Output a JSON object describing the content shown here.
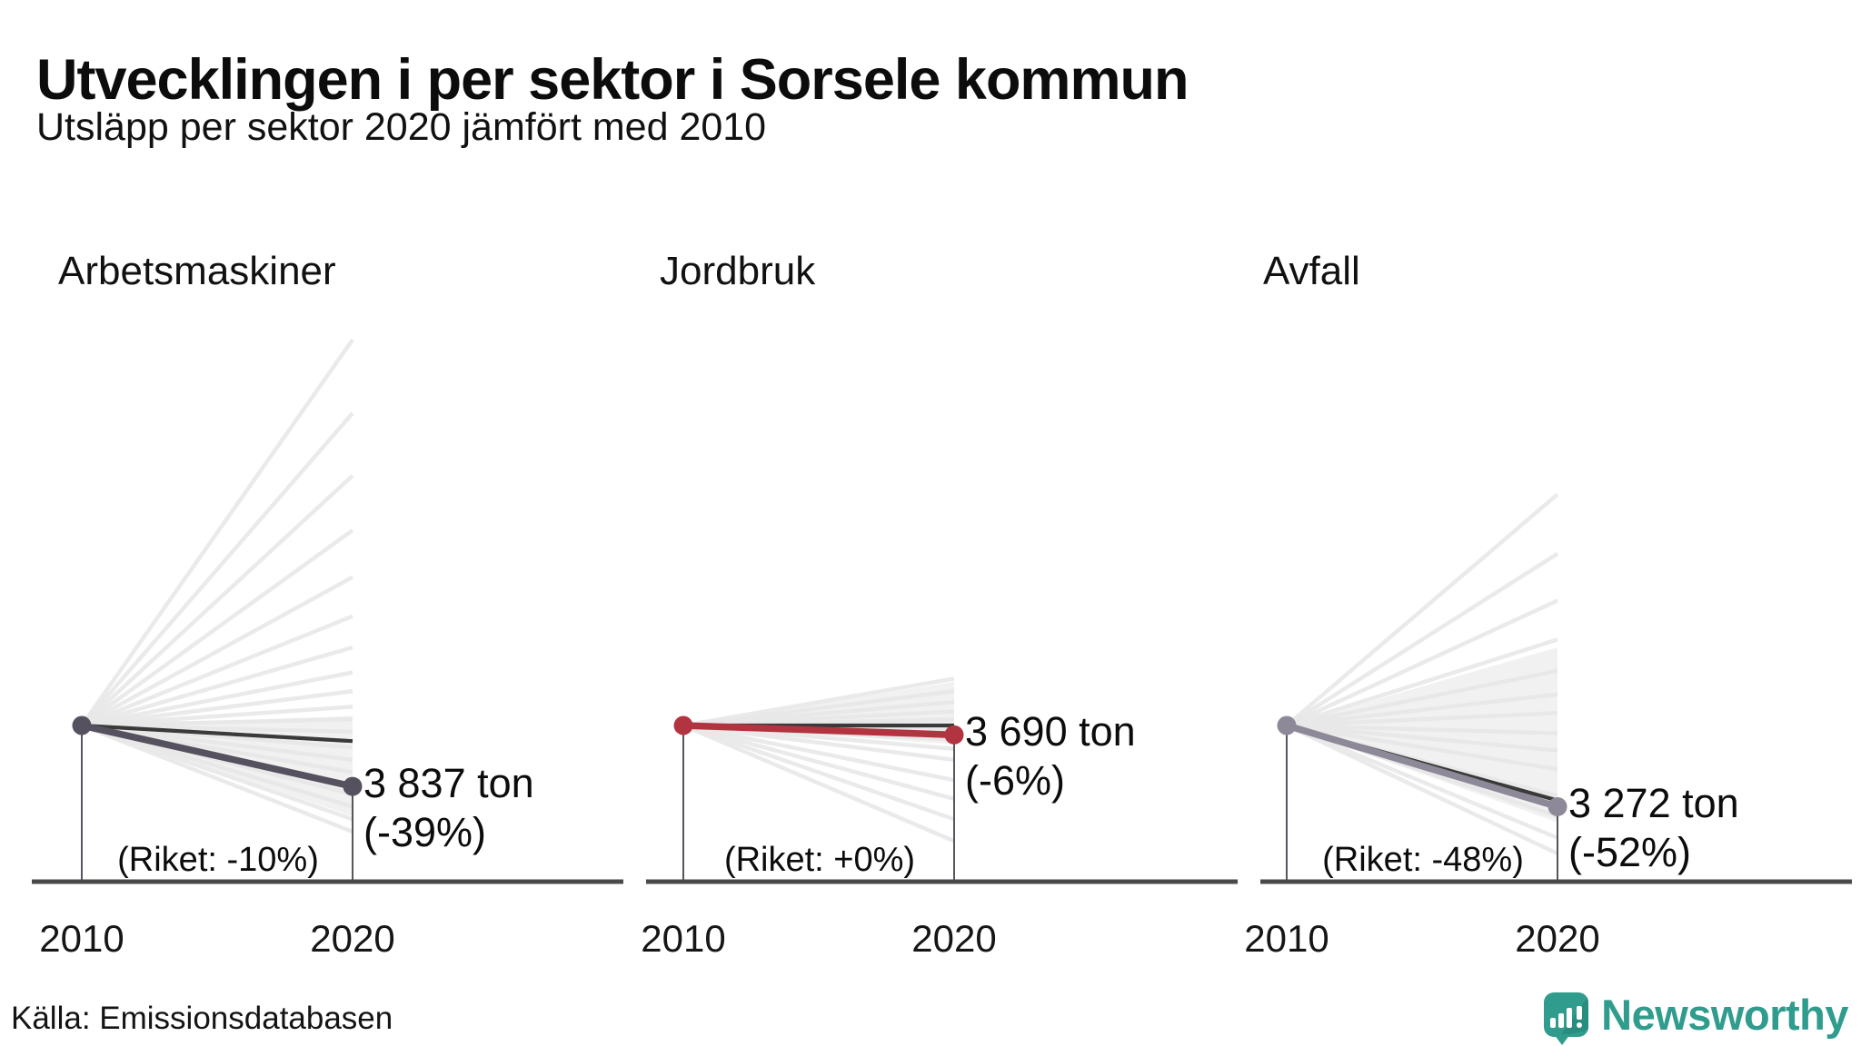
{
  "header": {
    "title": "Utvecklingen i per sektor i Sorsele kommun",
    "subtitle": "Utsläpp per sektor 2020 jämfört med 2010"
  },
  "footer": {
    "source": "Källa: Emissionsdatabasen",
    "brand": "Newsworthy"
  },
  "colors": {
    "chart1_line": "#56515e",
    "chart2_line": "#b23440",
    "chart3_line": "#8d8998",
    "riket_line": "#3a3a3a",
    "fan_line": "#e8e8e8",
    "axis": "#4a4a4a",
    "stem": "#3b3745",
    "brand_teal": "#2f9c8d"
  },
  "chart_data": [
    {
      "type": "line",
      "title": "Arbetsmaskiner",
      "x": [
        "2010",
        "2020"
      ],
      "value_2020_ton": 3837,
      "value_label": "3 837 ton",
      "change_pct": -39,
      "change_label": "(-39%)",
      "riket_pct": -10,
      "riket_label": "(Riket: -10%)",
      "line_color": "#56515e",
      "fan_wedge_pct": [
        6,
        -58
      ],
      "fan_lines_pct": [
        247,
        200,
        160,
        125,
        95,
        70,
        50,
        34,
        22,
        12,
        4,
        -4,
        -14,
        -22,
        -30,
        -44,
        -52,
        -60,
        -68
      ]
    },
    {
      "type": "line",
      "title": "Jordbruk",
      "x": [
        "2010",
        "2020"
      ],
      "value_2020_ton": 3690,
      "value_label": "3 690 ton",
      "change_pct": -6,
      "change_label": "(-6%)",
      "riket_pct": 0,
      "riket_label": "(Riket: +0%)",
      "line_color": "#b23440",
      "fan_wedge_pct": [
        28,
        -12
      ],
      "fan_lines_pct": [
        30,
        22,
        15,
        9,
        4,
        -3,
        -9,
        -15,
        -22,
        -35,
        -47,
        -60,
        -74
      ]
    },
    {
      "type": "line",
      "title": "Avfall",
      "x": [
        "2010",
        "2020"
      ],
      "value_2020_ton": 3272,
      "value_label": "3 272 ton",
      "change_pct": -52,
      "change_label": "(-52%)",
      "riket_pct": -48,
      "riket_label": "(Riket: -48%)",
      "line_color": "#8d8998",
      "fan_wedge_pct": [
        50,
        -62
      ],
      "fan_lines_pct": [
        148,
        110,
        80,
        55,
        35,
        20,
        8,
        -5,
        -16,
        -28,
        -45,
        -58,
        -72,
        -82
      ]
    }
  ]
}
